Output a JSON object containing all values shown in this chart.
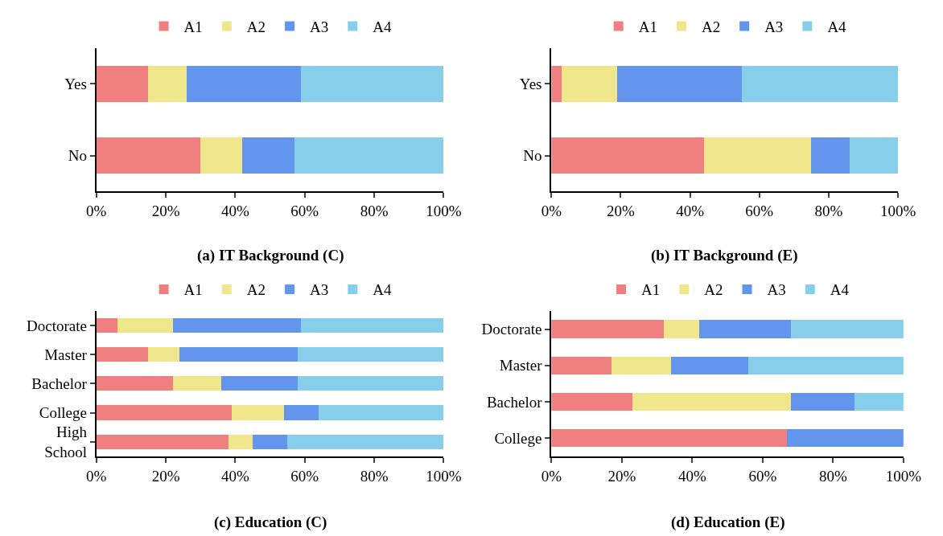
{
  "chart_data": [
    {
      "type": "bar",
      "orientation": "horizontal",
      "stacked": true,
      "title": "(a) IT Background (C)",
      "categories": [
        "Yes",
        "No"
      ],
      "series": [
        {
          "name": "A1",
          "color": "#f08080",
          "values": [
            15,
            30
          ]
        },
        {
          "name": "A2",
          "color": "#f0e68c",
          "values": [
            11,
            12
          ]
        },
        {
          "name": "A3",
          "color": "#6495ed",
          "values": [
            33,
            15
          ]
        },
        {
          "name": "A4",
          "color": "#87ceeb",
          "values": [
            41,
            43
          ]
        }
      ],
      "xlim": [
        0,
        100
      ],
      "xticks": [
        {
          "value": 0,
          "label": "0%"
        },
        {
          "value": 20,
          "label": "20%"
        },
        {
          "value": 40,
          "label": "40%"
        },
        {
          "value": 60,
          "label": "60%"
        },
        {
          "value": 80,
          "label": "80%"
        },
        {
          "value": 100,
          "label": "100%"
        }
      ],
      "legend": "top"
    },
    {
      "type": "bar",
      "orientation": "horizontal",
      "stacked": true,
      "title": "(b) IT Background (E)",
      "categories": [
        "Yes",
        "No"
      ],
      "series": [
        {
          "name": "A1",
          "color": "#f08080",
          "values": [
            3,
            44
          ]
        },
        {
          "name": "A2",
          "color": "#f0e68c",
          "values": [
            16,
            31
          ]
        },
        {
          "name": "A3",
          "color": "#6495ed",
          "values": [
            36,
            11
          ]
        },
        {
          "name": "A4",
          "color": "#87ceeb",
          "values": [
            45,
            14
          ]
        }
      ],
      "xlim": [
        0,
        100
      ],
      "xticks": [
        {
          "value": 0,
          "label": "0%"
        },
        {
          "value": 20,
          "label": "20%"
        },
        {
          "value": 40,
          "label": "40%"
        },
        {
          "value": 60,
          "label": "60%"
        },
        {
          "value": 80,
          "label": "80%"
        },
        {
          "value": 100,
          "label": "100%"
        }
      ],
      "legend": "top"
    },
    {
      "type": "bar",
      "orientation": "horizontal",
      "stacked": true,
      "title": "(c) Education (C)",
      "categories": [
        "Doctorate",
        "Master",
        "Bachelor",
        "College",
        "High\nSchool"
      ],
      "series": [
        {
          "name": "A1",
          "color": "#f08080",
          "values": [
            6,
            15,
            22,
            39,
            38
          ]
        },
        {
          "name": "A2",
          "color": "#f0e68c",
          "values": [
            16,
            9,
            14,
            15,
            7
          ]
        },
        {
          "name": "A3",
          "color": "#6495ed",
          "values": [
            37,
            34,
            22,
            10,
            10
          ]
        },
        {
          "name": "A4",
          "color": "#87ceeb",
          "values": [
            41,
            42,
            42,
            36,
            45
          ]
        }
      ],
      "xlim": [
        0,
        100
      ],
      "xticks": [
        {
          "value": 0,
          "label": "0%"
        },
        {
          "value": 20,
          "label": "20%"
        },
        {
          "value": 40,
          "label": "40%"
        },
        {
          "value": 60,
          "label": "60%"
        },
        {
          "value": 80,
          "label": "80%"
        },
        {
          "value": 100,
          "label": "100%"
        }
      ],
      "legend": "top"
    },
    {
      "type": "bar",
      "orientation": "horizontal",
      "stacked": true,
      "title": "(d) Education (E)",
      "categories": [
        "Doctorate",
        "Master",
        "Bachelor",
        "College"
      ],
      "series": [
        {
          "name": "A1",
          "color": "#f08080",
          "values": [
            32,
            17,
            23,
            67
          ]
        },
        {
          "name": "A2",
          "color": "#f0e68c",
          "values": [
            10,
            17,
            45,
            0
          ]
        },
        {
          "name": "A3",
          "color": "#6495ed",
          "values": [
            26,
            22,
            18,
            33
          ]
        },
        {
          "name": "A4",
          "color": "#87ceeb",
          "values": [
            32,
            44,
            14,
            0
          ]
        }
      ],
      "xlim": [
        0,
        100
      ],
      "xticks": [
        {
          "value": 0,
          "label": "0%"
        },
        {
          "value": 20,
          "label": "20%"
        },
        {
          "value": 40,
          "label": "40%"
        },
        {
          "value": 60,
          "label": "60%"
        },
        {
          "value": 80,
          "label": "80%"
        },
        {
          "value": 100,
          "label": "100%"
        }
      ],
      "legend": "top"
    }
  ]
}
